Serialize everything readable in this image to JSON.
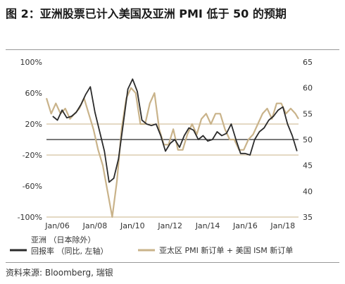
{
  "title": "图 2：亚洲股票已计入美国及亚洲 PMI 低于 50 的预期",
  "source": "资料来源: Bloomberg, 瑞银",
  "chart_data": {
    "type": "line",
    "x_ticks": [
      "Jan/06",
      "Jan/08",
      "Jan/10",
      "Jan/12",
      "Jan/14",
      "Jan/16",
      "Jan/18"
    ],
    "x_range": [
      "2005-06",
      "2018-11"
    ],
    "y_left": {
      "ticks": [
        "100%",
        "60%",
        "20%",
        "-20%",
        "-60%",
        "-100%"
      ],
      "min": -100,
      "max": 100
    },
    "y_right": {
      "ticks": [
        "65",
        "60",
        "55",
        "50",
        "45",
        "40",
        "35"
      ],
      "min": 35,
      "max": 65
    },
    "reference_lines": [
      {
        "axis": "right",
        "value": 50,
        "color": "#2b2b2b"
      },
      {
        "axis": "right",
        "value": 35,
        "color": "#c9b38a"
      },
      {
        "axis": "left",
        "value": 20,
        "color": "#c9b38a"
      },
      {
        "axis": "left",
        "value": -20,
        "color": "#c9b38a"
      }
    ],
    "series": [
      {
        "name": "亚洲（日本除外）回报率（同比, 左轴）",
        "legend_lines": [
          "亚洲 （日本除外）",
          "回报率 （同比, 左轴）"
        ],
        "axis": "left",
        "color": "#2b2b2b",
        "points": [
          [
            "2005-10",
            30
          ],
          [
            "2006-01",
            25
          ],
          [
            "2006-04",
            38
          ],
          [
            "2006-07",
            28
          ],
          [
            "2006-10",
            30
          ],
          [
            "2007-01",
            35
          ],
          [
            "2007-04",
            45
          ],
          [
            "2007-07",
            58
          ],
          [
            "2007-10",
            68
          ],
          [
            "2008-01",
            35
          ],
          [
            "2008-04",
            10
          ],
          [
            "2008-07",
            -15
          ],
          [
            "2008-10",
            -55
          ],
          [
            "2009-01",
            -50
          ],
          [
            "2009-04",
            -25
          ],
          [
            "2009-07",
            20
          ],
          [
            "2009-10",
            65
          ],
          [
            "2010-01",
            78
          ],
          [
            "2010-04",
            62
          ],
          [
            "2010-07",
            25
          ],
          [
            "2010-10",
            20
          ],
          [
            "2011-01",
            18
          ],
          [
            "2011-04",
            20
          ],
          [
            "2011-07",
            5
          ],
          [
            "2011-10",
            -15
          ],
          [
            "2012-01",
            -5
          ],
          [
            "2012-04",
            0
          ],
          [
            "2012-07",
            -10
          ],
          [
            "2012-10",
            5
          ],
          [
            "2013-01",
            15
          ],
          [
            "2013-04",
            12
          ],
          [
            "2013-07",
            0
          ],
          [
            "2013-10",
            5
          ],
          [
            "2014-01",
            -2
          ],
          [
            "2014-04",
            0
          ],
          [
            "2014-07",
            10
          ],
          [
            "2014-10",
            5
          ],
          [
            "2015-01",
            8
          ],
          [
            "2015-04",
            20
          ],
          [
            "2015-07",
            0
          ],
          [
            "2015-10",
            -18
          ],
          [
            "2016-01",
            -18
          ],
          [
            "2016-04",
            -20
          ],
          [
            "2016-07",
            0
          ],
          [
            "2016-10",
            10
          ],
          [
            "2017-01",
            15
          ],
          [
            "2017-04",
            25
          ],
          [
            "2017-07",
            30
          ],
          [
            "2017-10",
            38
          ],
          [
            "2018-01",
            42
          ],
          [
            "2018-04",
            20
          ],
          [
            "2018-07",
            5
          ],
          [
            "2018-10",
            -15
          ]
        ]
      },
      {
        "name": "亚太区 PMI 新订单 + 美国 ISM 新订单",
        "legend_lines": [
          "亚太区 PMI 新订单 + 美国 ISM 新订单"
        ],
        "axis": "right",
        "color": "#c9b38a",
        "points": [
          [
            "2005-06",
            58
          ],
          [
            "2005-09",
            55
          ],
          [
            "2005-12",
            57
          ],
          [
            "2006-03",
            55
          ],
          [
            "2006-06",
            56
          ],
          [
            "2006-09",
            54
          ],
          [
            "2006-12",
            55
          ],
          [
            "2007-03",
            56
          ],
          [
            "2007-06",
            58
          ],
          [
            "2007-09",
            55
          ],
          [
            "2007-12",
            52
          ],
          [
            "2008-03",
            48
          ],
          [
            "2008-06",
            45
          ],
          [
            "2008-09",
            40
          ],
          [
            "2008-12",
            35
          ],
          [
            "2009-03",
            42
          ],
          [
            "2009-06",
            52
          ],
          [
            "2009-09",
            58
          ],
          [
            "2009-12",
            60
          ],
          [
            "2010-03",
            59
          ],
          [
            "2010-06",
            53
          ],
          [
            "2010-09",
            53
          ],
          [
            "2010-12",
            57
          ],
          [
            "2011-03",
            59
          ],
          [
            "2011-06",
            52
          ],
          [
            "2011-09",
            49
          ],
          [
            "2011-12",
            49
          ],
          [
            "2012-03",
            52
          ],
          [
            "2012-06",
            48
          ],
          [
            "2012-09",
            48
          ],
          [
            "2012-12",
            51
          ],
          [
            "2013-03",
            53
          ],
          [
            "2013-06",
            51
          ],
          [
            "2013-09",
            54
          ],
          [
            "2013-12",
            55
          ],
          [
            "2014-03",
            53
          ],
          [
            "2014-06",
            55
          ],
          [
            "2014-09",
            55
          ],
          [
            "2014-12",
            52
          ],
          [
            "2015-03",
            50
          ],
          [
            "2015-06",
            50
          ],
          [
            "2015-09",
            48
          ],
          [
            "2015-12",
            48
          ],
          [
            "2016-03",
            50
          ],
          [
            "2016-06",
            51
          ],
          [
            "2016-09",
            53
          ],
          [
            "2016-12",
            55
          ],
          [
            "2017-03",
            56
          ],
          [
            "2017-06",
            54
          ],
          [
            "2017-09",
            57
          ],
          [
            "2017-12",
            57
          ],
          [
            "2018-03",
            55
          ],
          [
            "2018-06",
            56
          ],
          [
            "2018-09",
            55
          ],
          [
            "2018-11",
            54
          ]
        ]
      }
    ]
  }
}
